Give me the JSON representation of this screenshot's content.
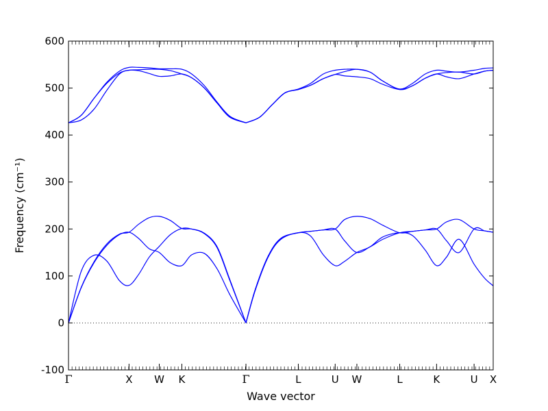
{
  "chart_data": {
    "type": "line",
    "title": "",
    "xlabel": "Wave vector",
    "ylabel": "Frequency (cm⁻¹)",
    "ylim": [
      -100,
      600
    ],
    "yticks": [
      -100,
      0,
      100,
      200,
      300,
      400,
      500,
      600
    ],
    "xlim": [
      0,
      1
    ],
    "xticks": [
      {
        "label": "Γ",
        "x": 0.0
      },
      {
        "label": "X",
        "x": 0.1425
      },
      {
        "label": "W",
        "x": 0.2137
      },
      {
        "label": "K",
        "x": 0.2669
      },
      {
        "label": "Γ",
        "x": 0.4178
      },
      {
        "label": "L",
        "x": 0.5411
      },
      {
        "label": "U",
        "x": 0.6279
      },
      {
        "label": "W",
        "x": 0.679
      },
      {
        "label": "L",
        "x": 0.7799
      },
      {
        "label": "K",
        "x": 0.8667
      },
      {
        "label": "U",
        "x": 0.955
      },
      {
        "label": "X",
        "x": 1.0
      }
    ],
    "zero_line": "dotted",
    "line_color": "#0000ff",
    "series": [
      {
        "x": [
          0,
          0.03,
          0.06,
          0.09,
          0.12,
          0.1425,
          0.165,
          0.19,
          0.2137,
          0.24,
          0.2669,
          0.29,
          0.32,
          0.35,
          0.38,
          0.4178
        ],
        "values": [
          0,
          75,
          128,
          165,
          188,
          193,
          180,
          158,
          150,
          128,
          122,
          145,
          148,
          115,
          60,
          0
        ]
      },
      {
        "x": [
          0,
          0.03,
          0.06,
          0.09,
          0.12,
          0.1425,
          0.165,
          0.19,
          0.2137,
          0.24,
          0.2669,
          0.29,
          0.32,
          0.35,
          0.38,
          0.4178
        ],
        "values": [
          0,
          110,
          144,
          132,
          90,
          80,
          103,
          140,
          163,
          188,
          201,
          200,
          190,
          160,
          90,
          0
        ]
      },
      {
        "x": [
          0,
          0.03,
          0.06,
          0.09,
          0.12,
          0.1425,
          0.165,
          0.19,
          0.2137,
          0.24,
          0.2669,
          0.29,
          0.32,
          0.35,
          0.38,
          0.4178
        ],
        "values": [
          0,
          76,
          130,
          168,
          189,
          193,
          210,
          224,
          227,
          218,
          201,
          200,
          191,
          162,
          92,
          0
        ]
      },
      {
        "x": [
          0.4178,
          0.44,
          0.47,
          0.5,
          0.5411,
          0.57,
          0.6,
          0.6279,
          0.65,
          0.679,
          0.71,
          0.74,
          0.7799,
          0.81,
          0.84,
          0.8667,
          0.89,
          0.92,
          0.955,
          0.98,
          1.0
        ],
        "values": [
          0,
          70,
          140,
          178,
          192,
          185,
          145,
          122,
          131,
          150,
          162,
          183,
          192,
          186,
          155,
          122,
          140,
          178,
          125,
          95,
          79
        ]
      },
      {
        "x": [
          0.4178,
          0.44,
          0.47,
          0.5,
          0.5411,
          0.57,
          0.6,
          0.6279,
          0.65,
          0.679,
          0.71,
          0.74,
          0.7799,
          0.81,
          0.84,
          0.8667,
          0.89,
          0.92,
          0.955,
          0.98,
          1.0
        ],
        "values": [
          0,
          72,
          142,
          180,
          192,
          195,
          198,
          200,
          175,
          150,
          162,
          178,
          192,
          195,
          198,
          200,
          175,
          150,
          200,
          196,
          193
        ]
      },
      {
        "x": [
          0.4178,
          0.44,
          0.47,
          0.5,
          0.5411,
          0.57,
          0.6,
          0.6279,
          0.65,
          0.679,
          0.71,
          0.74,
          0.7799,
          0.81,
          0.84,
          0.8667,
          0.89,
          0.92,
          0.955,
          0.98,
          1.0
        ],
        "values": [
          0,
          72,
          142,
          180,
          192,
          195,
          198,
          200,
          220,
          227,
          222,
          208,
          192,
          195,
          198,
          200,
          215,
          220,
          200,
          196,
          193
        ]
      },
      {
        "x": [
          0,
          0.03,
          0.06,
          0.09,
          0.12,
          0.1425,
          0.165,
          0.19,
          0.2137,
          0.24,
          0.2669,
          0.29,
          0.32,
          0.35,
          0.38,
          0.4178
        ],
        "values": [
          426,
          432,
          455,
          495,
          530,
          538,
          537,
          531,
          525,
          526,
          530,
          522,
          500,
          468,
          438,
          426
        ]
      },
      {
        "x": [
          0,
          0.03,
          0.06,
          0.09,
          0.12,
          0.1425,
          0.165,
          0.19,
          0.2137,
          0.24,
          0.2669,
          0.29,
          0.32,
          0.35,
          0.38,
          0.4178
        ],
        "values": [
          426,
          442,
          478,
          510,
          532,
          538,
          539,
          540,
          540,
          537,
          530,
          522,
          500,
          468,
          438,
          426
        ]
      },
      {
        "x": [
          0,
          0.03,
          0.06,
          0.09,
          0.12,
          0.1425,
          0.165,
          0.19,
          0.2137,
          0.24,
          0.2669,
          0.29,
          0.32,
          0.35,
          0.38,
          0.4178
        ],
        "values": [
          426,
          442,
          478,
          512,
          536,
          544,
          544,
          543,
          541,
          541,
          540,
          530,
          505,
          470,
          440,
          426
        ]
      },
      {
        "x": [
          0.4178,
          0.45,
          0.48,
          0.51,
          0.5411,
          0.57,
          0.6,
          0.6279,
          0.65,
          0.679,
          0.71,
          0.74,
          0.7799,
          0.81,
          0.84,
          0.8667,
          0.89,
          0.92,
          0.955,
          0.98,
          1.0
        ],
        "values": [
          426,
          438,
          465,
          490,
          497,
          506,
          520,
          529,
          526,
          524,
          520,
          508,
          497,
          505,
          521,
          530,
          533,
          534,
          530,
          536,
          538
        ]
      },
      {
        "x": [
          0.4178,
          0.45,
          0.48,
          0.51,
          0.5411,
          0.57,
          0.6,
          0.6279,
          0.65,
          0.679,
          0.71,
          0.74,
          0.7799,
          0.81,
          0.84,
          0.8667,
          0.89,
          0.92,
          0.955,
          0.98,
          1.0
        ],
        "values": [
          426,
          438,
          465,
          490,
          497,
          506,
          520,
          529,
          535,
          540,
          534,
          515,
          497,
          505,
          521,
          530,
          524,
          520,
          530,
          536,
          538
        ]
      },
      {
        "x": [
          0.4178,
          0.45,
          0.48,
          0.51,
          0.5411,
          0.57,
          0.6,
          0.6279,
          0.65,
          0.679,
          0.71,
          0.74,
          0.7799,
          0.81,
          0.84,
          0.8667,
          0.89,
          0.92,
          0.955,
          0.98,
          1.0
        ],
        "values": [
          426,
          438,
          465,
          490,
          498,
          510,
          530,
          538,
          540,
          540,
          534,
          515,
          498,
          510,
          530,
          538,
          536,
          534,
          538,
          542,
          543
        ]
      }
    ]
  }
}
